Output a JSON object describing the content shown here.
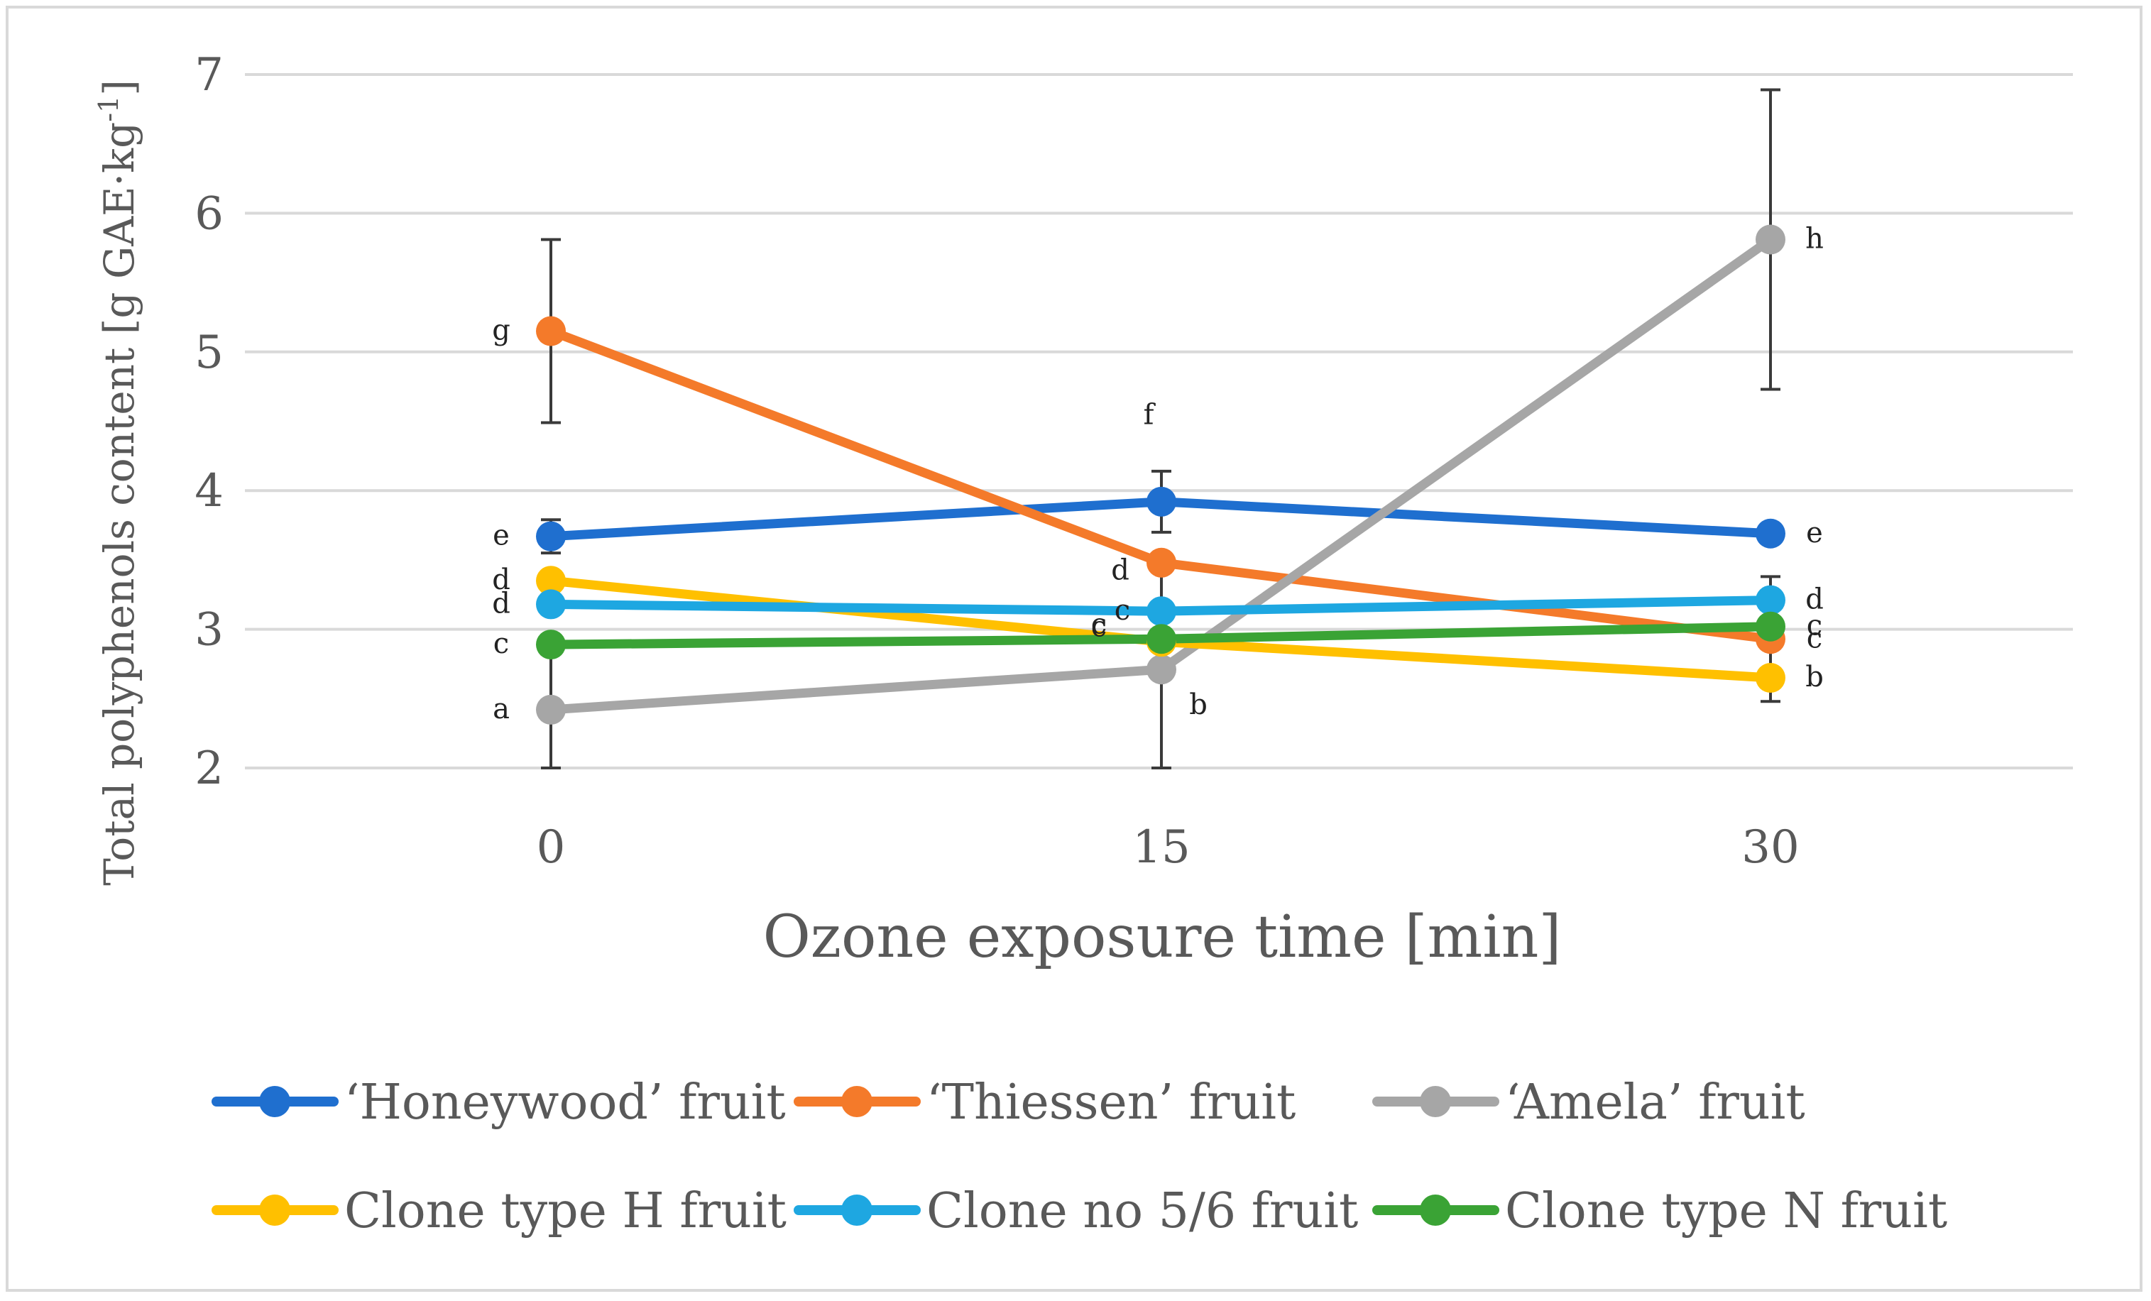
{
  "chart_data": {
    "type": "line",
    "title": "",
    "xlabel": "Ozone exposure time [min]",
    "ylabel_main": "Total polyphenols content [g GAE·kg",
    "ylabel_sup": "-1",
    "ylabel_end": "]",
    "x": [
      "0",
      "15",
      "30"
    ],
    "ylim": [
      2,
      7
    ],
    "yticks": [
      "2",
      "3",
      "4",
      "5",
      "6",
      "7"
    ],
    "grid": true,
    "legend_position": "bottom",
    "series": [
      {
        "name": "‘Honeywood’ fruit",
        "color": "#1f6fcf",
        "values": [
          3.67,
          3.92,
          3.69
        ],
        "errors": [
          0.12,
          0.22,
          null
        ],
        "labels": [
          "e",
          "f",
          "e"
        ]
      },
      {
        "name": "‘Thiessen’ fruit",
        "color": "#f47a2a",
        "values": [
          5.15,
          3.48,
          2.93
        ],
        "errors": [
          0.66,
          null,
          0.45
        ],
        "labels": [
          "g",
          "d",
          "c"
        ]
      },
      {
        "name": "‘Amela’ fruit",
        "color": "#a6a6a6",
        "values": [
          2.42,
          2.71,
          5.81
        ],
        "errors": [
          0.42,
          0.71,
          1.08
        ],
        "labels": [
          "a",
          "b",
          "h"
        ]
      },
      {
        "name": "Clone type H fruit",
        "color": "#ffc000",
        "values": [
          3.35,
          2.91,
          2.65
        ],
        "errors": [
          null,
          null,
          null
        ],
        "labels": [
          "d",
          "c",
          "b"
        ]
      },
      {
        "name": "Clone no 5/6 fruit",
        "color": "#1ea7e1",
        "values": [
          3.18,
          3.13,
          3.21
        ],
        "errors": [
          null,
          null,
          null
        ],
        "labels": [
          "d",
          "c",
          "d"
        ]
      },
      {
        "name": "Clone type N fruit",
        "color": "#3aa335",
        "values": [
          2.89,
          2.93,
          3.02
        ],
        "errors": [
          null,
          null,
          null
        ],
        "labels": [
          "c",
          "c",
          "c"
        ]
      }
    ]
  }
}
